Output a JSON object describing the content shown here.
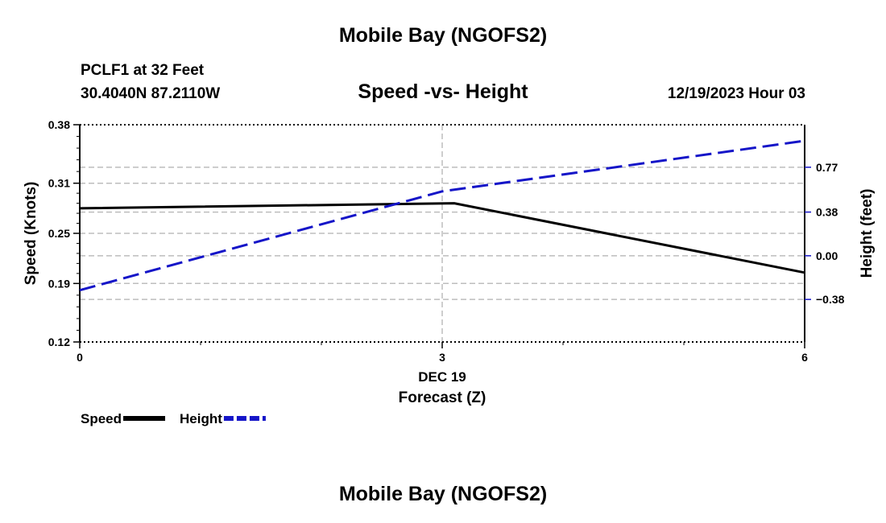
{
  "header": {
    "title": "Mobile Bay (NGOFS2)",
    "station": "PCLF1 at 32 Feet",
    "coords": "30.4040N  87.2110W",
    "timestamp": "12/19/2023 Hour 03"
  },
  "footer": {
    "title": "Mobile Bay (NGOFS2)"
  },
  "chart_data": {
    "type": "line",
    "title": "Speed -vs- Height",
    "xlabel": "Forecast (Z)",
    "x_date_label": "DEC 19",
    "x_ticks": [
      0,
      3,
      6
    ],
    "x": [
      0,
      3,
      6
    ],
    "y_left": {
      "label": "Speed (Knots)",
      "ticks": [
        "0.12",
        "0.19",
        "0.25",
        "0.31",
        "0.38"
      ],
      "lim": [
        0.12,
        0.38
      ]
    },
    "y_right": {
      "label": "Height (feet)",
      "ticks": [
        "-0.38",
        "0.00",
        "0.38",
        "0.77"
      ],
      "lim": [
        -0.75,
        1.14
      ]
    },
    "series": [
      {
        "name": "Speed",
        "axis": "left",
        "color": "#000000",
        "style": "solid",
        "x": [
          0,
          3.1,
          6
        ],
        "values": [
          0.28,
          0.286,
          0.203
        ]
      },
      {
        "name": "Height",
        "axis": "right",
        "color": "#1515c8",
        "style": "dashed",
        "x": [
          0,
          3,
          6
        ],
        "values": [
          -0.3,
          0.56,
          1.0
        ]
      }
    ],
    "grid": true,
    "legend": "bottom-left"
  }
}
